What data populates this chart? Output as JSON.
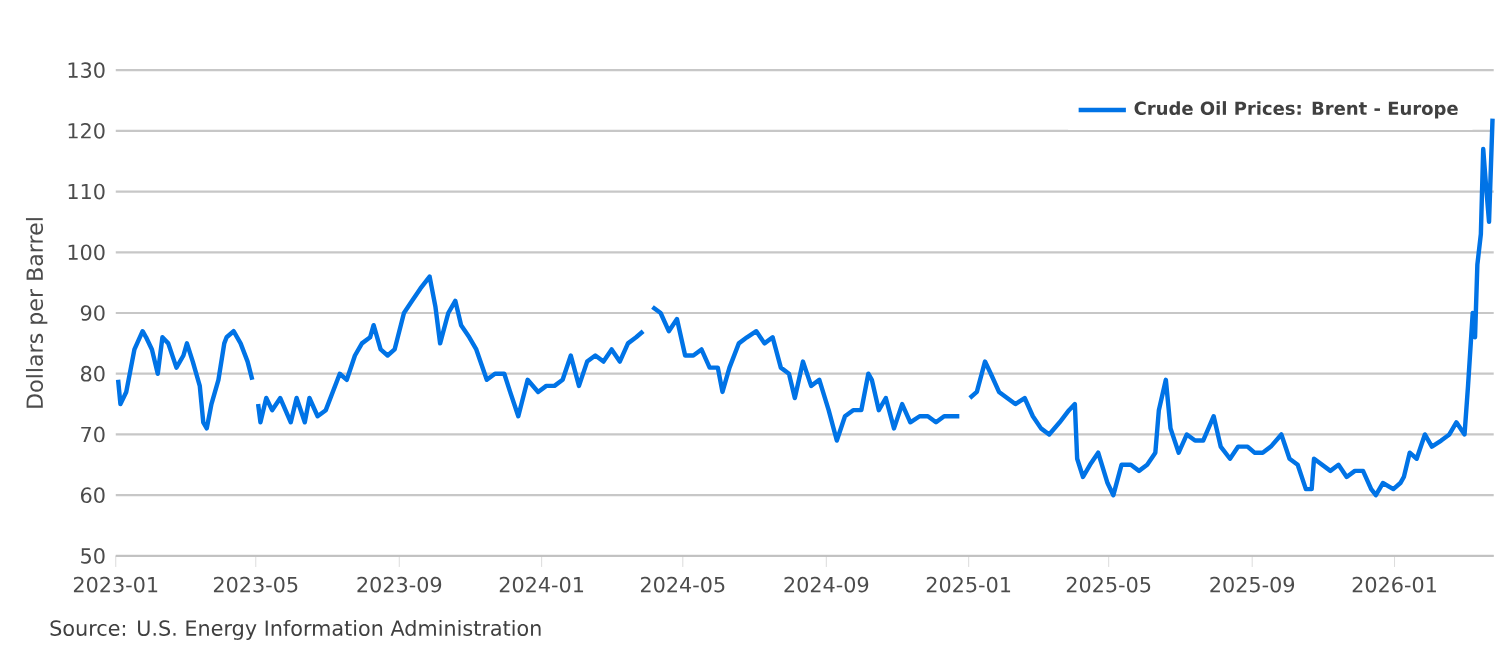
{
  "chart_data": {
    "type": "line",
    "ylabel": "Dollars per Barrel",
    "annotations": [
      "Source: U.S. Energy Information Administration"
    ],
    "x": [
      "2023-01-03",
      "2023-01-05",
      "2023-01-10",
      "2023-01-17",
      "2023-01-24",
      "2023-01-27",
      "2023-02-01",
      "2023-02-06",
      "2023-02-10",
      "2023-02-15",
      "2023-02-22",
      "2023-02-28",
      "2023-03-03",
      "2023-03-08",
      "2023-03-14",
      "2023-03-17",
      "2023-03-20",
      "2023-03-24",
      "2023-03-30",
      "2023-04-04",
      "2023-04-06",
      "2023-04-12",
      "2023-04-18",
      "2023-04-24",
      "2023-04-28",
      "2023-05-01",
      "2023-05-03",
      "2023-05-05",
      "2023-05-10",
      "2023-05-15",
      "2023-05-22",
      "2023-05-31",
      "2023-06-05",
      "2023-06-12",
      "2023-06-16",
      "2023-06-23",
      "2023-06-30",
      "2023-07-06",
      "2023-07-12",
      "2023-07-18",
      "2023-07-25",
      "2023-07-31",
      "2023-08-07",
      "2023-08-10",
      "2023-08-16",
      "2023-08-22",
      "2023-08-28",
      "2023-09-05",
      "2023-09-12",
      "2023-09-19",
      "2023-09-27",
      "2023-10-02",
      "2023-10-06",
      "2023-10-13",
      "2023-10-19",
      "2023-10-24",
      "2023-10-31",
      "2023-11-06",
      "2023-11-15",
      "2023-11-22",
      "2023-11-30",
      "2023-12-05",
      "2023-12-12",
      "2023-12-20",
      "2023-12-29",
      "2024-01-05",
      "2024-01-12",
      "2024-01-19",
      "2024-01-26",
      "2024-02-02",
      "2024-02-09",
      "2024-02-16",
      "2024-02-23",
      "2024-03-01",
      "2024-03-08",
      "2024-03-15",
      "2024-03-22",
      "2024-03-28",
      "2024-04-01",
      "2024-04-05",
      "2024-04-12",
      "2024-04-19",
      "2024-04-26",
      "2024-05-03",
      "2024-05-10",
      "2024-05-17",
      "2024-05-24",
      "2024-05-31",
      "2024-06-04",
      "2024-06-10",
      "2024-06-18",
      "2024-06-25",
      "2024-07-03",
      "2024-07-10",
      "2024-07-17",
      "2024-07-24",
      "2024-07-31",
      "2024-08-05",
      "2024-08-12",
      "2024-08-19",
      "2024-08-26",
      "2024-09-03",
      "2024-09-10",
      "2024-09-17",
      "2024-09-24",
      "2024-10-01",
      "2024-10-07",
      "2024-10-10",
      "2024-10-16",
      "2024-10-22",
      "2024-10-29",
      "2024-11-05",
      "2024-11-12",
      "2024-11-20",
      "2024-11-27",
      "2024-12-04",
      "2024-12-11",
      "2024-12-18",
      "2024-12-24",
      "2024-12-27",
      "2025-01-02",
      "2025-01-08",
      "2025-01-15",
      "2025-01-20",
      "2025-01-27",
      "2025-02-03",
      "2025-02-10",
      "2025-02-18",
      "2025-02-25",
      "2025-03-04",
      "2025-03-11",
      "2025-03-20",
      "2025-03-28",
      "2025-04-02",
      "2025-04-04",
      "2025-04-09",
      "2025-04-15",
      "2025-04-22",
      "2025-04-30",
      "2025-05-05",
      "2025-05-12",
      "2025-05-20",
      "2025-05-27",
      "2025-06-03",
      "2025-06-10",
      "2025-06-13",
      "2025-06-19",
      "2025-06-23",
      "2025-06-30",
      "2025-07-07",
      "2025-07-14",
      "2025-07-21",
      "2025-07-30",
      "2025-08-05",
      "2025-08-13",
      "2025-08-20",
      "2025-08-28",
      "2025-09-03",
      "2025-09-10",
      "2025-09-17",
      "2025-09-26",
      "2025-10-03",
      "2025-10-10",
      "2025-10-17",
      "2025-10-22",
      "2025-10-24",
      "2025-10-31",
      "2025-11-07",
      "2025-11-14",
      "2025-11-21",
      "2025-11-28",
      "2025-12-05",
      "2025-12-12",
      "2025-12-16",
      "2025-12-22",
      "2025-12-31",
      "2026-01-06",
      "2026-01-09",
      "2026-01-14",
      "2026-01-20",
      "2026-01-27",
      "2026-02-02",
      "2026-02-10",
      "2026-02-17",
      "2026-02-23",
      "2026-03-02",
      "2026-03-05",
      "2026-03-09",
      "2026-03-11",
      "2026-03-13",
      "2026-03-16",
      "2026-03-18",
      "2026-03-20",
      "2026-03-23",
      "2026-03-26"
    ],
    "series": [
      {
        "name": "Crude Oil Prices: Brent - Europe",
        "color": "#0073e6",
        "values": [
          79,
          75,
          77,
          84,
          87,
          86,
          84,
          80,
          86,
          85,
          81,
          83,
          85,
          82,
          78,
          72,
          71,
          75,
          79,
          85,
          86,
          87,
          85,
          82,
          79,
          null,
          75,
          72,
          76,
          74,
          76,
          72,
          76,
          72,
          76,
          73,
          74,
          77,
          80,
          79,
          83,
          85,
          86,
          88,
          84,
          83,
          84,
          90,
          92,
          94,
          96,
          91,
          85,
          90,
          92,
          88,
          86,
          84,
          79,
          80,
          80,
          77,
          73,
          79,
          77,
          78,
          78,
          79,
          83,
          78,
          82,
          83,
          82,
          84,
          82,
          85,
          86,
          87,
          null,
          91,
          90,
          87,
          89,
          83,
          83,
          84,
          81,
          81,
          77,
          81,
          85,
          86,
          87,
          85,
          86,
          81,
          80,
          76,
          82,
          78,
          79,
          74,
          69,
          73,
          74,
          74,
          80,
          79,
          74,
          76,
          71,
          75,
          72,
          73,
          73,
          72,
          73,
          73,
          73,
          null,
          76,
          77,
          82,
          80,
          77,
          76,
          75,
          76,
          73,
          71,
          70,
          72,
          74,
          75,
          66,
          63,
          65,
          67,
          62,
          60,
          65,
          65,
          64,
          65,
          67,
          74,
          79,
          71,
          67,
          70,
          69,
          69,
          73,
          68,
          66,
          68,
          68,
          67,
          67,
          68,
          70,
          66,
          65,
          61,
          61,
          66,
          65,
          64,
          65,
          63,
          64,
          64,
          61,
          60,
          62,
          61,
          62,
          63,
          67,
          66,
          70,
          68,
          69,
          70,
          72,
          70,
          78,
          90,
          86,
          98,
          103,
          117,
          112,
          105,
          122
        ]
      }
    ],
    "xlim": [
      "2023-01-01",
      "2026-03-27"
    ],
    "xticks": [
      {
        "value": "2023-01-01",
        "label": "2023-01"
      },
      {
        "value": "2023-05-01",
        "label": "2023-05"
      },
      {
        "value": "2023-09-01",
        "label": "2023-09"
      },
      {
        "value": "2024-01-01",
        "label": "2024-01"
      },
      {
        "value": "2024-05-01",
        "label": "2024-05"
      },
      {
        "value": "2024-09-01",
        "label": "2024-09"
      },
      {
        "value": "2025-01-01",
        "label": "2025-01"
      },
      {
        "value": "2025-05-01",
        "label": "2025-05"
      },
      {
        "value": "2025-09-01",
        "label": "2025-09"
      },
      {
        "value": "2026-01-01",
        "label": "2026-01"
      }
    ],
    "ylim": [
      50,
      130
    ],
    "yticks": [
      50,
      60,
      70,
      80,
      90,
      100,
      110,
      120,
      130
    ],
    "grid": "y",
    "legend": "top right",
    "marker": "none",
    "line_style": "solid"
  }
}
